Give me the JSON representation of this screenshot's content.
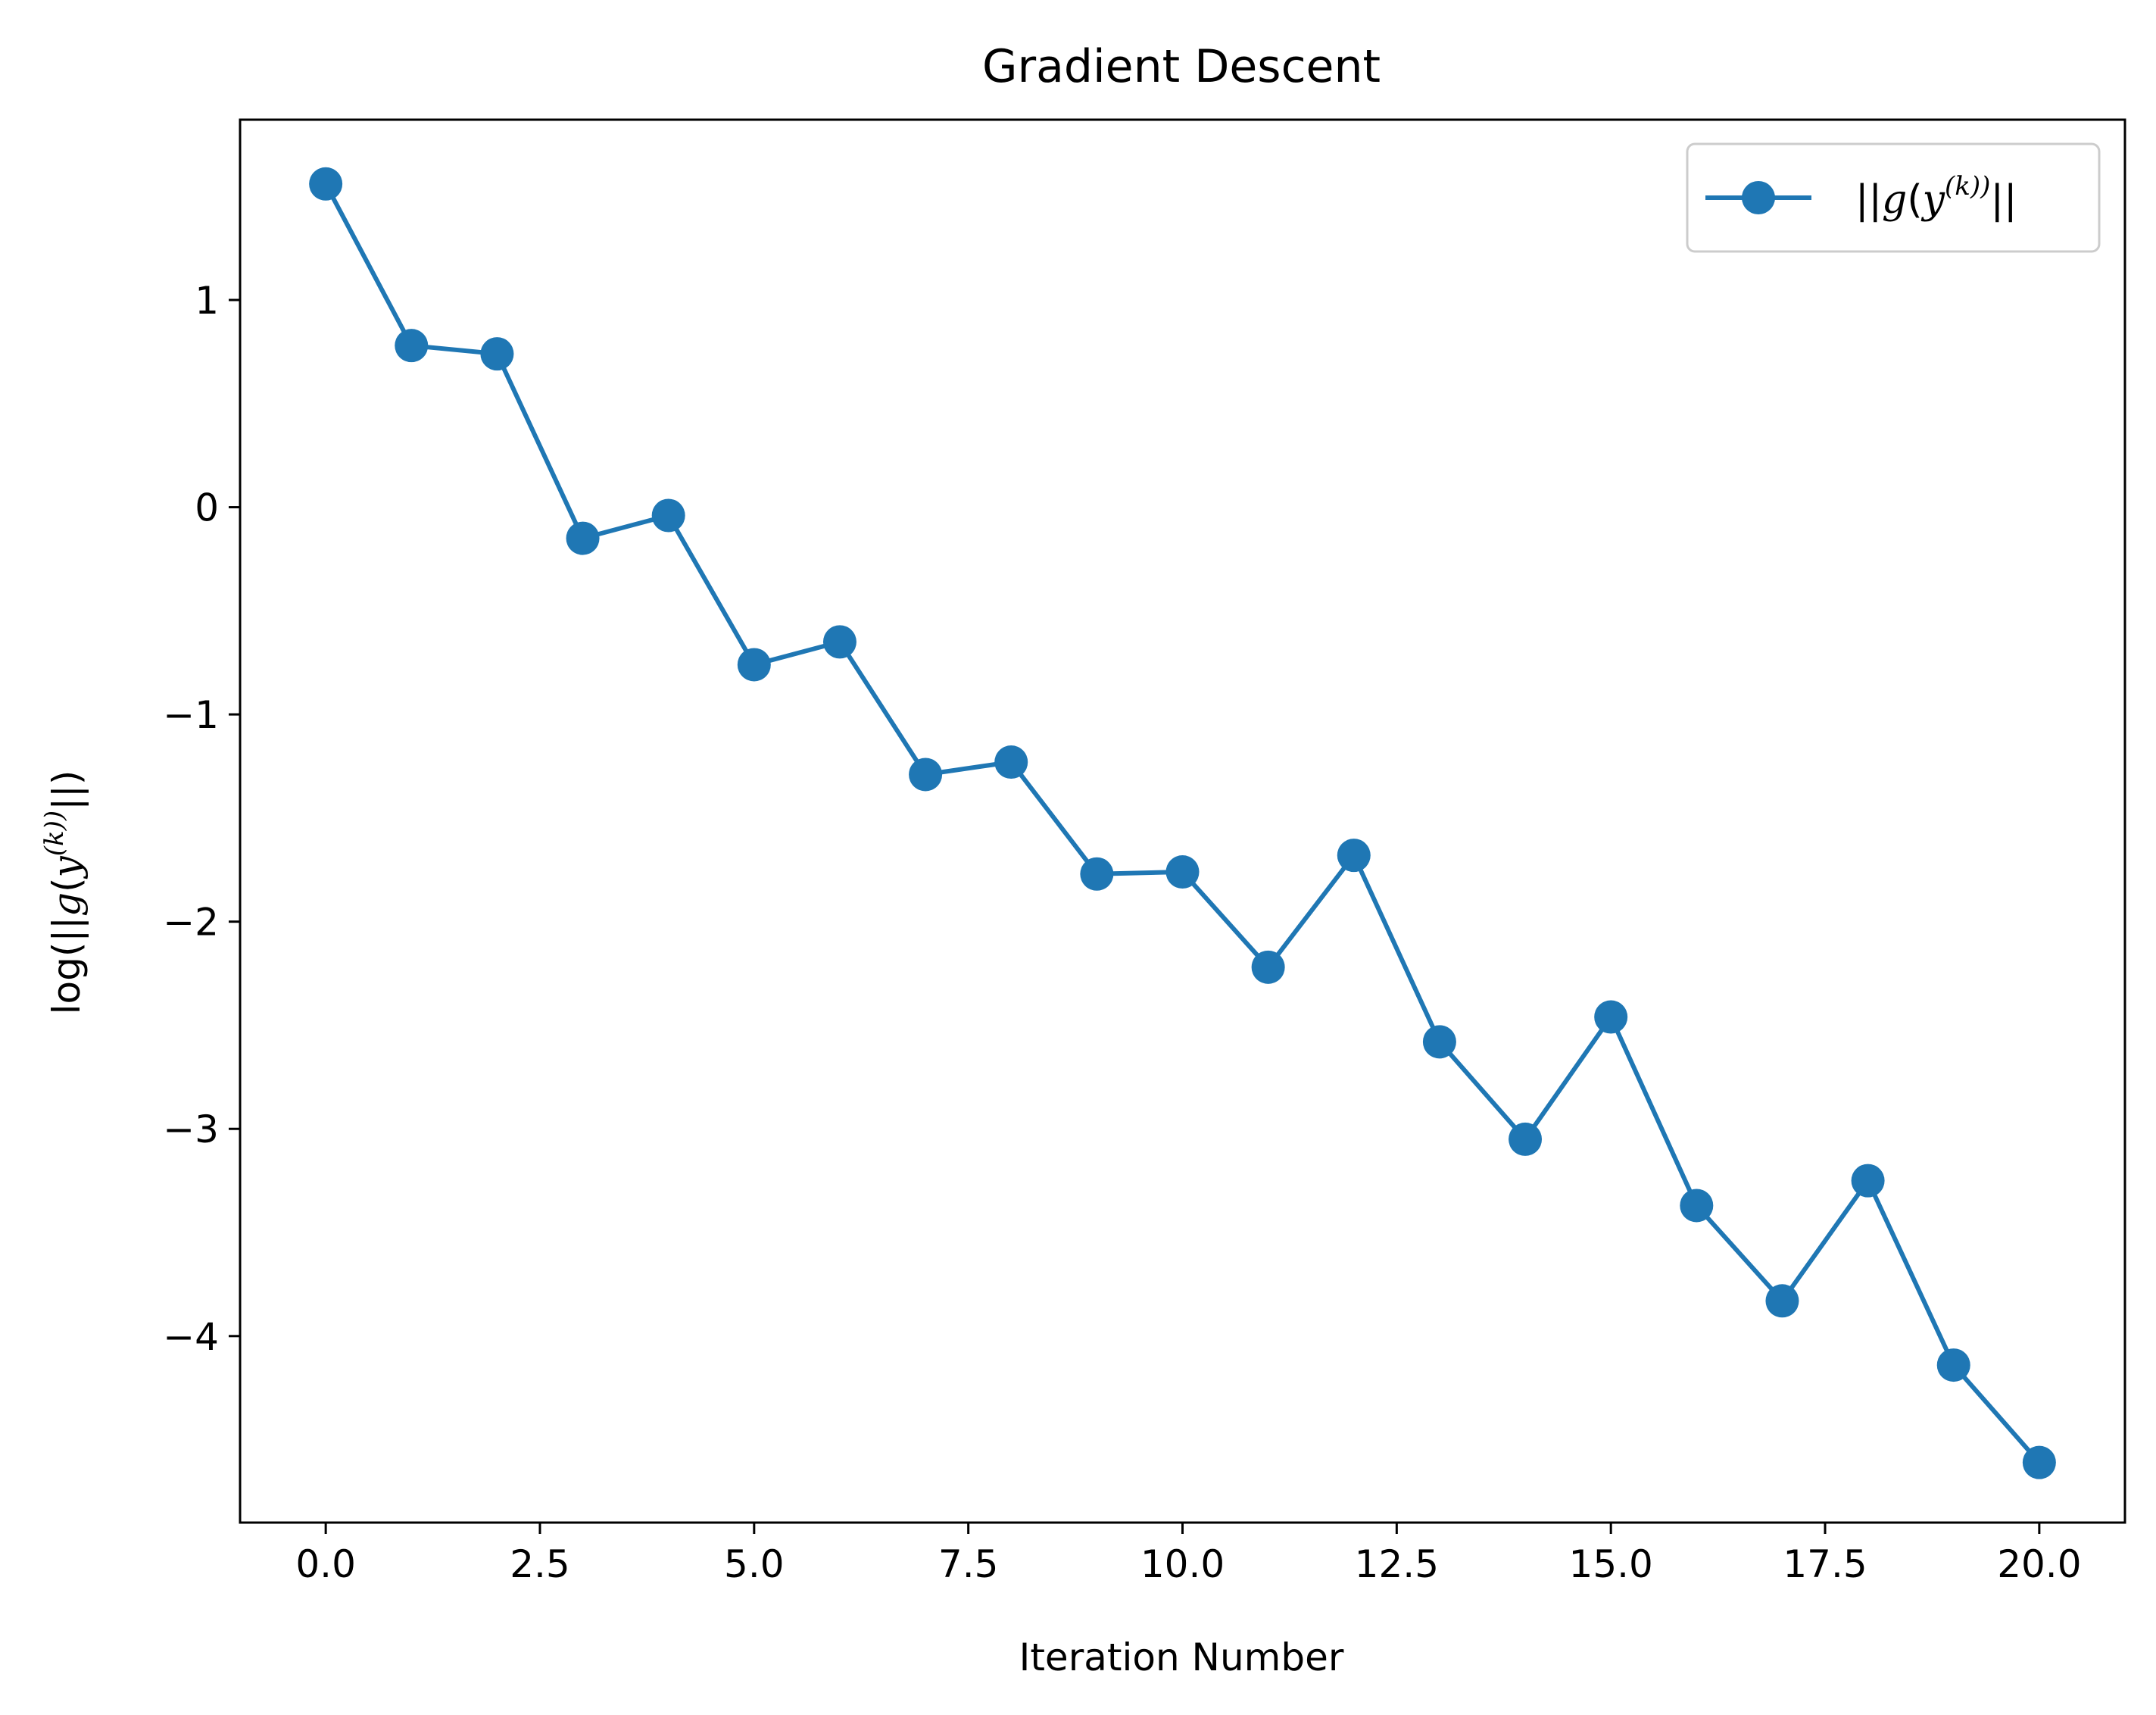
{
  "chart_data": {
    "type": "line",
    "title": "Gradient Descent",
    "xlabel": "Iteration Number",
    "ylabel": {
      "prefix": "log(||",
      "g": "g",
      "open": "(",
      "y": "y",
      "sup": "(k))",
      "suffix": "||)"
    },
    "xlim": [
      -1,
      21
    ],
    "ylim": [
      -4.9,
      1.87
    ],
    "xticks": [
      0.0,
      2.5,
      5.0,
      7.5,
      10.0,
      12.5,
      15.0,
      17.5,
      20.0
    ],
    "xtick_labels": [
      "0.0",
      "2.5",
      "5.0",
      "7.5",
      "10.0",
      "12.5",
      "15.0",
      "17.5",
      "20.0"
    ],
    "yticks": [
      1,
      0,
      -1,
      -2,
      -3,
      -4
    ],
    "ytick_labels": [
      "1",
      "0",
      "−1",
      "−2",
      "−3",
      "−4"
    ],
    "grid": false,
    "legend_position": "top-right",
    "series": [
      {
        "name": {
          "prefix": "||",
          "g": "g",
          "open": "(",
          "y": "y",
          "sup": "(k))",
          "suffix": "||"
        },
        "color": "#1f77b4",
        "marker": "circle",
        "x": [
          0,
          1,
          2,
          3,
          4,
          5,
          6,
          7,
          8,
          9,
          10,
          11,
          12,
          13,
          14,
          15,
          16,
          17,
          18,
          19,
          20
        ],
        "y": [
          1.56,
          0.78,
          0.74,
          -0.15,
          -0.04,
          -0.76,
          -0.65,
          -1.29,
          -1.23,
          -1.77,
          -1.76,
          -2.22,
          -1.68,
          -2.58,
          -3.05,
          -2.46,
          -3.37,
          -3.83,
          -3.25,
          -4.14,
          -4.61
        ]
      }
    ]
  }
}
